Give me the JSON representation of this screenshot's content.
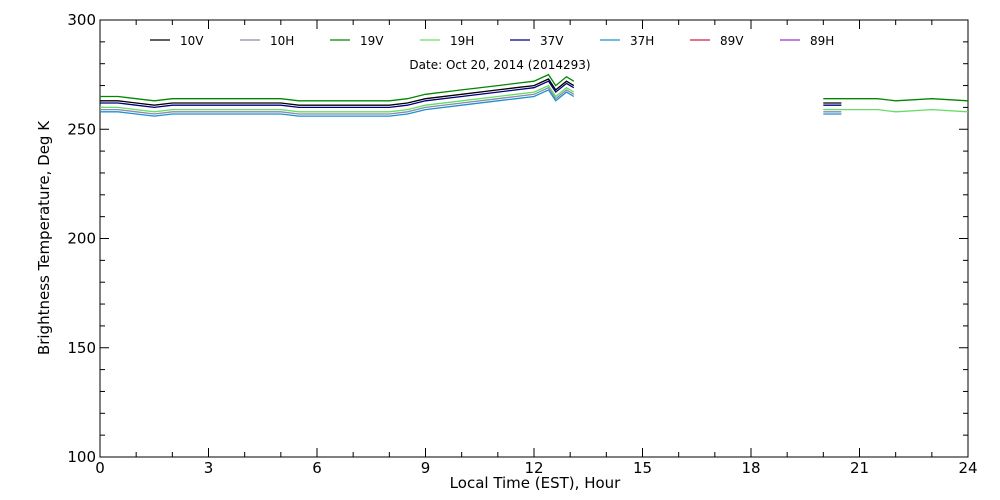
{
  "chart_data": {
    "type": "line",
    "subtitle": "Date: Oct 20, 2014 (2014293)",
    "xlabel": "Local Time (EST), Hour",
    "ylabel": "Brightness Temperature, Deg K",
    "xlim": [
      0,
      24
    ],
    "ylim": [
      100,
      300
    ],
    "xticks": [
      0,
      3,
      6,
      9,
      12,
      15,
      18,
      21,
      24
    ],
    "yticks": [
      100,
      150,
      200,
      250,
      300
    ],
    "grid": false,
    "legend_position": "top-left, single row",
    "series": [
      {
        "name": "10V",
        "color": "#000000",
        "segments": [
          [
            [
              0,
              263
            ],
            [
              0.5,
              263
            ],
            [
              1,
              262
            ],
            [
              1.5,
              261
            ],
            [
              2,
              262
            ],
            [
              3,
              262
            ],
            [
              4,
              262
            ],
            [
              5,
              262
            ],
            [
              5.5,
              261
            ],
            [
              6,
              261
            ],
            [
              7,
              261
            ],
            [
              8,
              261
            ],
            [
              8.5,
              262
            ],
            [
              9,
              264
            ],
            [
              10,
              266
            ],
            [
              11,
              268
            ],
            [
              11.5,
              269
            ],
            [
              12,
              270
            ],
            [
              12.4,
              273
            ],
            [
              12.6,
              268
            ],
            [
              12.9,
              272
            ],
            [
              13.1,
              270
            ]
          ],
          [
            [
              20,
              262
            ],
            [
              20.5,
              262
            ]
          ]
        ]
      },
      {
        "name": "10H",
        "color": "#8a8aaa",
        "segments": [
          [
            [
              0,
              259
            ],
            [
              0.5,
              259
            ],
            [
              1,
              258
            ],
            [
              1.5,
              257
            ],
            [
              2,
              258
            ],
            [
              3,
              258
            ],
            [
              4,
              258
            ],
            [
              5,
              258
            ],
            [
              5.5,
              257
            ],
            [
              6,
              257
            ],
            [
              7,
              257
            ],
            [
              8,
              257
            ],
            [
              8.5,
              258
            ],
            [
              9,
              260
            ],
            [
              10,
              262
            ],
            [
              11,
              264
            ],
            [
              11.5,
              265
            ],
            [
              12,
              266
            ],
            [
              12.4,
              269
            ],
            [
              12.6,
              264
            ],
            [
              12.9,
              268
            ],
            [
              13.1,
              266
            ]
          ],
          [
            [
              20,
              258
            ],
            [
              20.5,
              258
            ]
          ]
        ]
      },
      {
        "name": "19V",
        "color": "#008800",
        "segments": [
          [
            [
              0,
              265
            ],
            [
              0.5,
              265
            ],
            [
              1,
              264
            ],
            [
              1.5,
              263
            ],
            [
              2,
              264
            ],
            [
              3,
              264
            ],
            [
              4,
              264
            ],
            [
              5,
              264
            ],
            [
              5.5,
              263
            ],
            [
              6,
              263
            ],
            [
              7,
              263
            ],
            [
              8,
              263
            ],
            [
              8.5,
              264
            ],
            [
              9,
              266
            ],
            [
              10,
              268
            ],
            [
              11,
              270
            ],
            [
              11.5,
              271
            ],
            [
              12,
              272
            ],
            [
              12.4,
              275
            ],
            [
              12.6,
              270
            ],
            [
              12.9,
              274
            ],
            [
              13.1,
              272
            ]
          ],
          [
            [
              20,
              264
            ],
            [
              21,
              264
            ],
            [
              21.5,
              264
            ],
            [
              22,
              263
            ],
            [
              23,
              264
            ],
            [
              24,
              263
            ]
          ]
        ]
      },
      {
        "name": "19H",
        "color": "#66dd66",
        "segments": [
          [
            [
              0,
              260
            ],
            [
              0.5,
              260
            ],
            [
              1,
              259
            ],
            [
              1.5,
              258
            ],
            [
              2,
              259
            ],
            [
              3,
              259
            ],
            [
              4,
              259
            ],
            [
              5,
              259
            ],
            [
              5.5,
              258
            ],
            [
              6,
              258
            ],
            [
              7,
              258
            ],
            [
              8,
              258
            ],
            [
              8.5,
              259
            ],
            [
              9,
              261
            ],
            [
              10,
              263
            ],
            [
              11,
              265
            ],
            [
              11.5,
              266
            ],
            [
              12,
              267
            ],
            [
              12.4,
              270
            ],
            [
              12.6,
              265
            ],
            [
              12.9,
              269
            ],
            [
              13.1,
              267
            ]
          ],
          [
            [
              20,
              259
            ],
            [
              21,
              259
            ],
            [
              21.5,
              259
            ],
            [
              22,
              258
            ],
            [
              23,
              259
            ],
            [
              24,
              258
            ]
          ]
        ]
      },
      {
        "name": "37V",
        "color": "#000080",
        "segments": [
          [
            [
              0,
              262
            ],
            [
              0.5,
              262
            ],
            [
              1,
              261
            ],
            [
              1.5,
              260
            ],
            [
              2,
              261
            ],
            [
              3,
              261
            ],
            [
              4,
              261
            ],
            [
              5,
              261
            ],
            [
              5.5,
              260
            ],
            [
              6,
              260
            ],
            [
              7,
              260
            ],
            [
              8,
              260
            ],
            [
              8.5,
              261
            ],
            [
              9,
              263
            ],
            [
              10,
              265
            ],
            [
              11,
              267
            ],
            [
              11.5,
              268
            ],
            [
              12,
              269
            ],
            [
              12.4,
              272
            ],
            [
              12.6,
              267
            ],
            [
              12.9,
              271
            ],
            [
              13.1,
              269
            ]
          ],
          [
            [
              20,
              261
            ],
            [
              20.5,
              261
            ]
          ]
        ]
      },
      {
        "name": "37H",
        "color": "#1e90d0",
        "segments": [
          [
            [
              0,
              258
            ],
            [
              0.5,
              258
            ],
            [
              1,
              257
            ],
            [
              1.5,
              256
            ],
            [
              2,
              257
            ],
            [
              3,
              257
            ],
            [
              4,
              257
            ],
            [
              5,
              257
            ],
            [
              5.5,
              256
            ],
            [
              6,
              256
            ],
            [
              7,
              256
            ],
            [
              8,
              256
            ],
            [
              8.5,
              257
            ],
            [
              9,
              259
            ],
            [
              10,
              261
            ],
            [
              11,
              263
            ],
            [
              11.5,
              264
            ],
            [
              12,
              265
            ],
            [
              12.4,
              268
            ],
            [
              12.6,
              263
            ],
            [
              12.9,
              267
            ],
            [
              13.1,
              265
            ]
          ],
          [
            [
              20,
              257
            ],
            [
              20.5,
              257
            ]
          ]
        ]
      },
      {
        "name": "89V",
        "color": "#cc2244",
        "segments": []
      },
      {
        "name": "89H",
        "color": "#9933cc",
        "segments": []
      }
    ]
  }
}
